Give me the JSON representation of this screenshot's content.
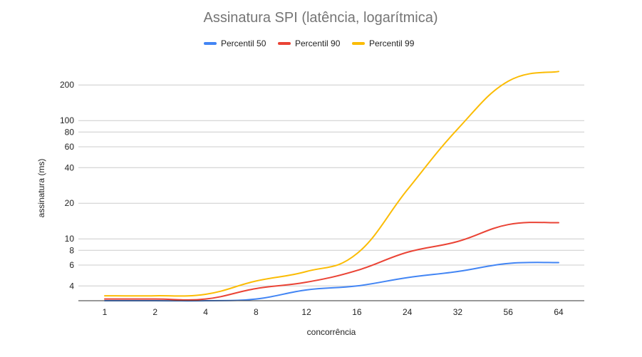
{
  "chart_data": {
    "type": "line",
    "title": "Assinatura SPI (latência, logarítmica)",
    "xlabel": "concorrência",
    "ylabel": "assinatura (ms)",
    "y_scale": "log",
    "ylim": [
      3.0,
      300
    ],
    "y_ticks": [
      4,
      6,
      8,
      10,
      20,
      40,
      60,
      80,
      100,
      200
    ],
    "categories": [
      "1",
      "2",
      "4",
      "8",
      "12",
      "16",
      "24",
      "32",
      "56",
      "64"
    ],
    "legend_position": "top",
    "grid": true,
    "smooth": true,
    "series": [
      {
        "name": "Percentil 50",
        "color": "#4285F4",
        "values": [
          3.0,
          3.0,
          3.0,
          3.1,
          3.7,
          4.0,
          4.7,
          5.3,
          6.2,
          6.3
        ]
      },
      {
        "name": "Percentil 90",
        "color": "#EA4335",
        "values": [
          3.1,
          3.1,
          3.1,
          3.8,
          4.3,
          5.4,
          7.7,
          9.5,
          13.2,
          13.7
        ]
      },
      {
        "name": "Percentil 99",
        "color": "#FBBC04",
        "values": [
          3.3,
          3.3,
          3.4,
          4.4,
          5.3,
          7.5,
          26,
          85,
          215,
          260
        ]
      }
    ]
  }
}
